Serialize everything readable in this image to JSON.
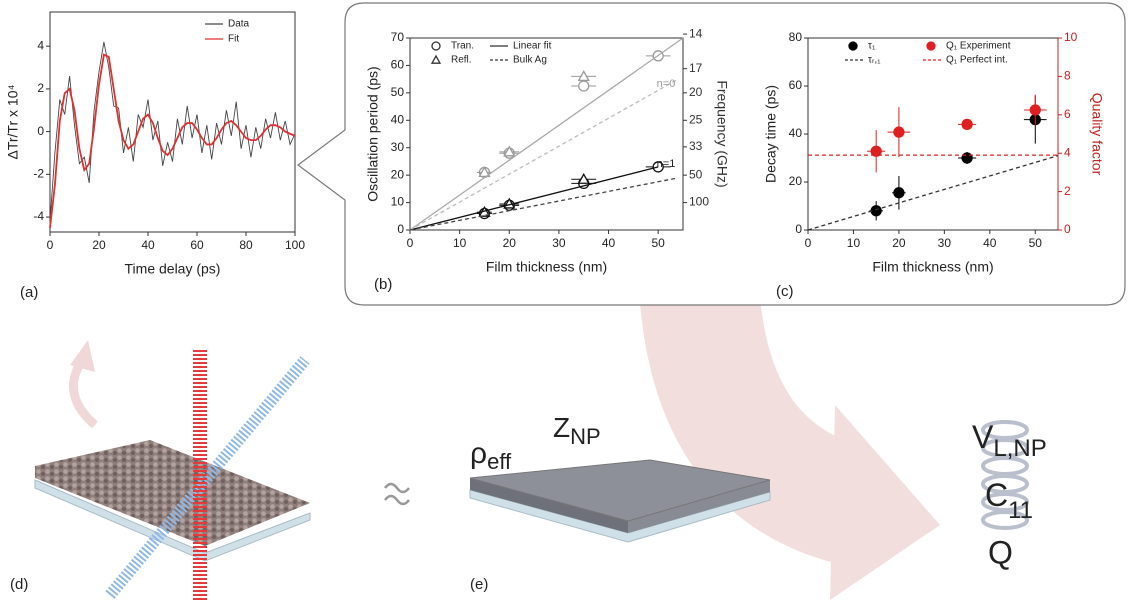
{
  "chart_data": [
    {
      "type": "line",
      "panel_label": "(a)",
      "x_label": "Time delay (ps)",
      "y_label": "ΔTr/Tr x 10⁴",
      "x": [
        0,
        2,
        4,
        6,
        8,
        10,
        12,
        14,
        16,
        18,
        20,
        22,
        24,
        26,
        28,
        30,
        32,
        34,
        36,
        38,
        40,
        42,
        44,
        46,
        48,
        50,
        52,
        54,
        56,
        58,
        60,
        62,
        64,
        66,
        68,
        70,
        72,
        74,
        76,
        78,
        80,
        82,
        84,
        86,
        88,
        90,
        92,
        94,
        96,
        98,
        100
      ],
      "series": [
        {
          "name": "Data",
          "color": "#444444",
          "values": [
            -4.2,
            -1.0,
            1.5,
            0.8,
            2.6,
            0.3,
            -1.5,
            -1.2,
            -2.4,
            1.0,
            2.8,
            4.2,
            3.0,
            1.2,
            1.1,
            -1.0,
            0.2,
            -1.4,
            0.8,
            0.2,
            1.5,
            -0.4,
            0.5,
            -1.6,
            -0.5,
            -1.4,
            0.6,
            -0.6,
            1.2,
            -0.3,
            0.8,
            -1.0,
            0.3,
            -1.3,
            0.4,
            -0.6,
            1.0,
            -0.2,
            1.4,
            -0.8,
            0.3,
            -1.2,
            0.2,
            -0.8,
            0.6,
            -0.3,
            0.9,
            -0.4,
            0.5,
            -0.6,
            -0.1
          ]
        },
        {
          "name": "Fit",
          "color": "#e03030",
          "values": [
            -4.5,
            -2.5,
            0.5,
            1.8,
            2.0,
            1.0,
            -0.8,
            -1.8,
            -1.5,
            0.2,
            2.2,
            3.6,
            3.5,
            2.0,
            0.5,
            -0.4,
            -0.8,
            -0.6,
            0.0,
            0.6,
            0.8,
            0.4,
            -0.3,
            -0.9,
            -1.1,
            -0.8,
            -0.3,
            0.2,
            0.4,
            0.4,
            0.1,
            -0.3,
            -0.6,
            -0.6,
            -0.3,
            0.1,
            0.4,
            0.5,
            0.3,
            0.0,
            -0.3,
            -0.4,
            -0.4,
            -0.2,
            0.1,
            0.3,
            0.3,
            0.2,
            0.0,
            -0.1,
            -0.2
          ]
        }
      ],
      "xlim": [
        0,
        100
      ],
      "xticks": [
        0,
        20,
        40,
        60,
        80,
        100
      ],
      "ylim": [
        -4.7,
        5.6
      ],
      "yticks": [
        -4,
        -2,
        0,
        2,
        4
      ],
      "legend": "upper right"
    },
    {
      "type": "scatter",
      "panel_label": "(b)",
      "x_label": "Film thickness (nm)",
      "y_label": "Oscillation period (ps)",
      "y2_label": "Frequency (GHz)",
      "xlim": [
        0,
        55
      ],
      "xticks": [
        0,
        10,
        20,
        30,
        40,
        50
      ],
      "ylim": [
        0,
        70
      ],
      "yticks": [
        0,
        10,
        20,
        30,
        40,
        50,
        60,
        70
      ],
      "y2_scale": "reciprocal",
      "y2ticks": [
        14,
        17,
        20,
        25,
        33,
        50,
        100
      ],
      "series": [
        {
          "name": "Tran.",
          "marker": "circle",
          "filled": false,
          "color": "#333333",
          "x": [
            15,
            20,
            35,
            50,
            15,
            20,
            35,
            50
          ],
          "values": [
            21,
            28,
            52.5,
            63.5,
            6,
            9,
            17,
            23
          ],
          "x_err": [
            1.5,
            2,
            2.5,
            2.5,
            1.5,
            2,
            2.5,
            2.5
          ],
          "y_err": [
            1,
            1,
            1,
            1,
            0.8,
            0.8,
            1,
            1
          ],
          "colors": [
            "#9a9a9a",
            "#9a9a9a",
            "#9a9a9a",
            "#9a9a9a",
            "#111111",
            "#111111",
            "#111111",
            "#111111"
          ]
        },
        {
          "name": "Refl.",
          "marker": "triangle",
          "filled": false,
          "color": "#333333",
          "x": [
            15,
            20,
            35,
            15,
            20,
            35
          ],
          "values": [
            21,
            28.5,
            56,
            6.5,
            9.5,
            18.5
          ],
          "x_err": [
            1.5,
            2,
            2.5,
            1.5,
            2,
            2.5
          ],
          "y_err": [
            1,
            1,
            2,
            0.8,
            0.8,
            1
          ],
          "colors": [
            "#9a9a9a",
            "#9a9a9a",
            "#9a9a9a",
            "#111111",
            "#111111",
            "#111111"
          ]
        },
        {
          "name": "Linear fit",
          "style": "solid",
          "color": "#333333",
          "segments": [
            {
              "color": "#a8a8a8",
              "x": [
                0,
                55
              ],
              "values": [
                0,
                70
              ]
            },
            {
              "color": "#111111",
              "x": [
                0,
                50
              ],
              "values": [
                0,
                23
              ]
            }
          ]
        },
        {
          "name": "Bulk Ag",
          "style": "dashed",
          "color": "#333333",
          "segments": [
            {
              "color": "#bcbcbc",
              "x": [
                0,
                54
              ],
              "values": [
                0,
                55
              ]
            },
            {
              "color": "#444444",
              "x": [
                0,
                54
              ],
              "values": [
                0,
                19
              ]
            }
          ]
        }
      ],
      "annotations": [
        "n=0",
        "n=1"
      ]
    },
    {
      "type": "scatter",
      "panel_label": "(c)",
      "x_label": "Film thickness (nm)",
      "y_label": "Decay time (ps)",
      "y2_label": "Quality factor",
      "xlim": [
        0,
        55
      ],
      "xticks": [
        0,
        10,
        20,
        30,
        40,
        50
      ],
      "ylim": [
        0,
        80
      ],
      "yticks": [
        0,
        20,
        40,
        60,
        80
      ],
      "y2lim": [
        0,
        10
      ],
      "y2ticks": [
        0,
        2,
        4,
        6,
        8,
        10
      ],
      "y2_color": "#c8201e",
      "series": [
        {
          "name": "τ₁",
          "marker": "circle",
          "filled": true,
          "color": "#000000",
          "x": [
            15,
            20,
            35,
            50
          ],
          "values": [
            8,
            15.5,
            30,
            46
          ],
          "x_err": [
            1.5,
            1.5,
            2,
            2.5
          ],
          "y_err": [
            4,
            7,
            2.5,
            10
          ]
        },
        {
          "name": "τᵣ,₁",
          "style": "dashed",
          "color": "#333333",
          "segments": [
            {
              "color": "#333333",
              "x": [
                0,
                55
              ],
              "values": [
                0,
                31
              ]
            }
          ]
        },
        {
          "name": "Q₁ Experiment",
          "axis": "y2",
          "marker": "circle",
          "filled": true,
          "color": "#e02020",
          "x": [
            15,
            20,
            35,
            50
          ],
          "values": [
            4.1,
            5.1,
            5.5,
            6.25
          ],
          "x_err": [
            2,
            2.5,
            2,
            2.5
          ],
          "y_err": [
            1.1,
            1.3,
            0.2,
            0.8
          ]
        },
        {
          "name": "Q₁ Perfect int.",
          "axis": "y2",
          "style": "dashed",
          "color": "#e02020",
          "segments": [
            {
              "color": "#e02020",
              "x": [
                0,
                55
              ],
              "values": [
                3.9,
                3.9
              ]
            }
          ]
        }
      ]
    }
  ],
  "panels": {
    "d_label": "(d)",
    "e_label": "(e)",
    "e_symbols": [
      {
        "base": "ρ",
        "sub": "eff"
      },
      {
        "base": "Z",
        "sub": "NP"
      }
    ],
    "outputs": [
      {
        "base": "V",
        "sub": "L,NP"
      },
      {
        "base": "C",
        "sub": "11"
      },
      {
        "base": "Q"
      }
    ]
  }
}
